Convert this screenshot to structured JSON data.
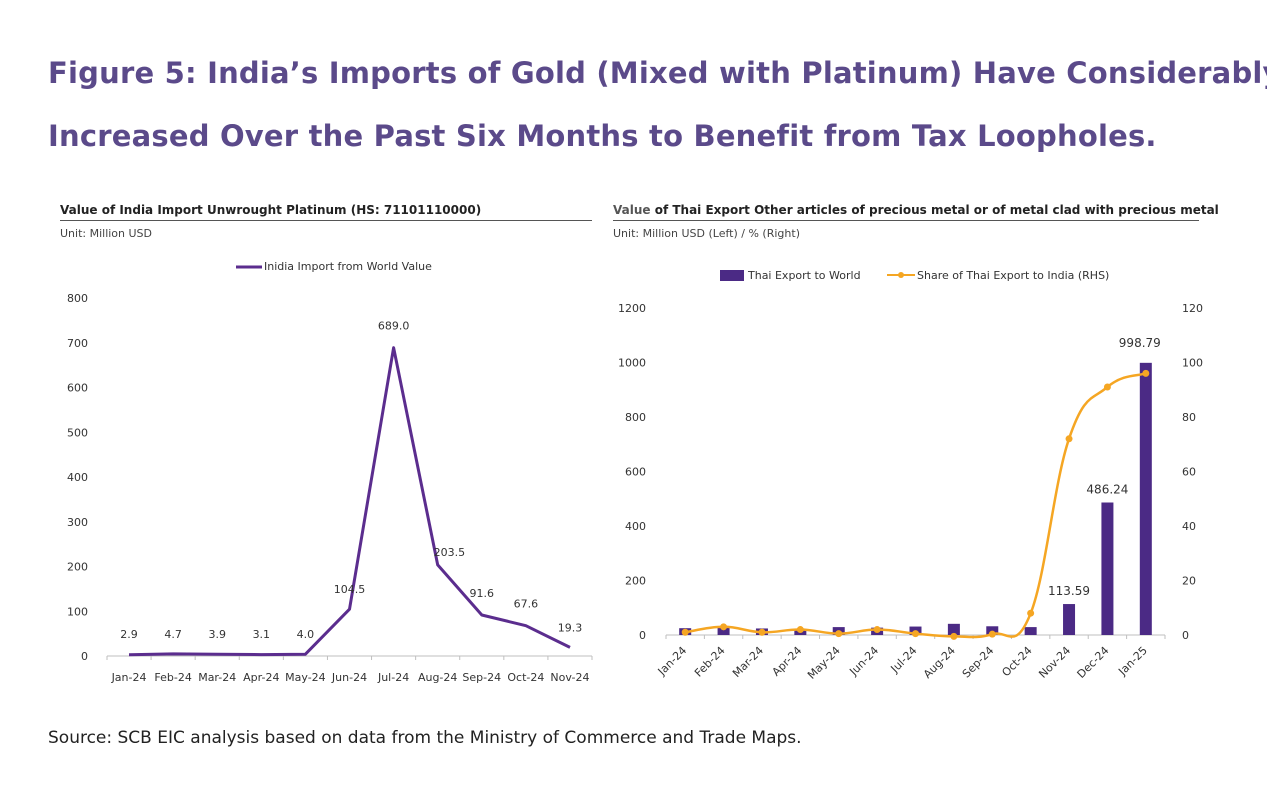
{
  "figure": {
    "title_line1": "Figure 5: India’s Imports of Gold (Mixed with Platinum) Have Considerably",
    "title_line2": "Increased Over the Past Six Months to Benefit from Tax Loopholes.",
    "source": "Source: SCB EIC analysis based on data from the Ministry of Commerce and Trade Maps."
  },
  "left_chart": {
    "title": "Value of India Import Unwrought Platinum (HS: 71101110000)",
    "unit": "Unit: Million USD"
  },
  "right_chart": {
    "title_prefix": "Value",
    "title_rest": " of Thai Export Other articles of precious metal or of metal clad with precious metal",
    "unit": "Unit: Million USD (Left) / % (Right)"
  },
  "colors": {
    "title": "#5b4a8a",
    "line_purple": "#5b2d8e",
    "bar_purple": "#4b2a85",
    "line_orange": "#f5a623"
  },
  "chart_data": [
    {
      "type": "line",
      "title": "Value of India Import Unwrought Platinum (HS: 71101110000)",
      "unit": "Unit: Million USD",
      "categories": [
        "Jan-24",
        "Feb-24",
        "Mar-24",
        "Apr-24",
        "May-24",
        "Jun-24",
        "Jul-24",
        "Aug-24",
        "Sep-24",
        "Oct-24",
        "Nov-24"
      ],
      "series": [
        {
          "name": "Inidia Import from World Value",
          "values": [
            2.9,
            4.7,
            3.9,
            3.1,
            4.0,
            104.5,
            689.0,
            203.5,
            91.6,
            67.6,
            19.3
          ],
          "labels": [
            "2.9",
            "4.7",
            "3.9",
            "3.1",
            "4.0",
            "104.5",
            "689.0",
            "203.5",
            "91.6",
            "67.6",
            "19.3"
          ]
        }
      ],
      "ylim": [
        0,
        800
      ],
      "yticks": [
        0,
        100,
        200,
        300,
        400,
        500,
        600,
        700,
        800
      ],
      "legend": "top-center",
      "grid": false
    },
    {
      "type": "bar",
      "title": "Value of Thai Export Other articles of precious metal or of metal clad with precious metal",
      "unit": "Unit: Million USD (Left) / % (Right)",
      "categories": [
        "Jan-24",
        "Feb-24",
        "Mar-24",
        "Apr-24",
        "May-24",
        "Jun-24",
        "Jul-24",
        "Aug-24",
        "Sep-24",
        "Oct-24",
        "Nov-24",
        "Dec-24",
        "Jan-25"
      ],
      "series": [
        {
          "name": "Thai Export to World",
          "type": "bar",
          "axis": "left",
          "values": [
            25,
            27,
            24,
            21,
            29,
            27,
            31,
            41,
            32,
            29,
            113.59,
            486.24,
            998.79
          ],
          "labels": [
            "",
            "",
            "",
            "",
            "",
            "",
            "",
            "",
            "",
            "",
            "113.59",
            "486.24",
            "998.79"
          ]
        },
        {
          "name": "Share of Thai Export to India (RHS)",
          "type": "line",
          "axis": "right",
          "values": [
            1,
            3,
            1,
            2,
            0.5,
            2,
            0.5,
            -0.5,
            0.3,
            8,
            72,
            91,
            96
          ]
        }
      ],
      "ylim": [
        0,
        1200
      ],
      "yticks": [
        0,
        200,
        400,
        600,
        800,
        1000,
        1200
      ],
      "y2lim": [
        0,
        120
      ],
      "y2ticks": [
        0,
        20,
        40,
        60,
        80,
        100,
        120
      ],
      "legend": "top-center",
      "grid": false
    }
  ]
}
